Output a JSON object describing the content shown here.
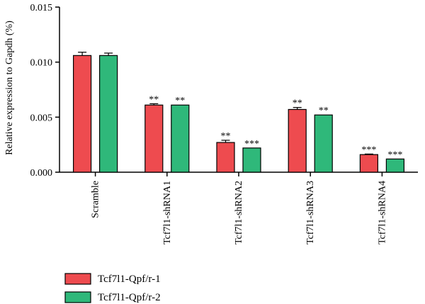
{
  "chart_data": {
    "type": "bar",
    "title": "",
    "xlabel": "",
    "ylabel": "Relative expression to Gapdh (%)",
    "ylim": [
      0,
      0.015
    ],
    "yticks": [
      "0.000",
      "0.005",
      "0.010",
      "0.015"
    ],
    "grid": false,
    "legend_position": "bottom-left",
    "categories": [
      "Scramble",
      "Tcf7l1-shRNA1",
      "Tcf7l1-shRNA2",
      "Tcf7l1-shRNA3",
      "Tcf7l1-shRNA4"
    ],
    "series": [
      {
        "name": "Tcf7l1-Qpf/r-1",
        "color": "#ee4b4f",
        "values": [
          0.0106,
          0.0061,
          0.0027,
          0.0057,
          0.0016
        ],
        "errors": [
          0.0003,
          0.00012,
          0.0002,
          0.00018,
          5e-05
        ],
        "significance": [
          "",
          "**",
          "**",
          "**",
          "***"
        ]
      },
      {
        "name": "Tcf7l1-Qpf/r-2",
        "color": "#2fb87a",
        "values": [
          0.0106,
          0.0061,
          0.0022,
          0.0052,
          0.0012
        ],
        "errors": [
          0.00022,
          0.0,
          0.0,
          0.0,
          0.0
        ],
        "significance": [
          "",
          "**",
          "***",
          "**",
          "***"
        ]
      }
    ]
  }
}
